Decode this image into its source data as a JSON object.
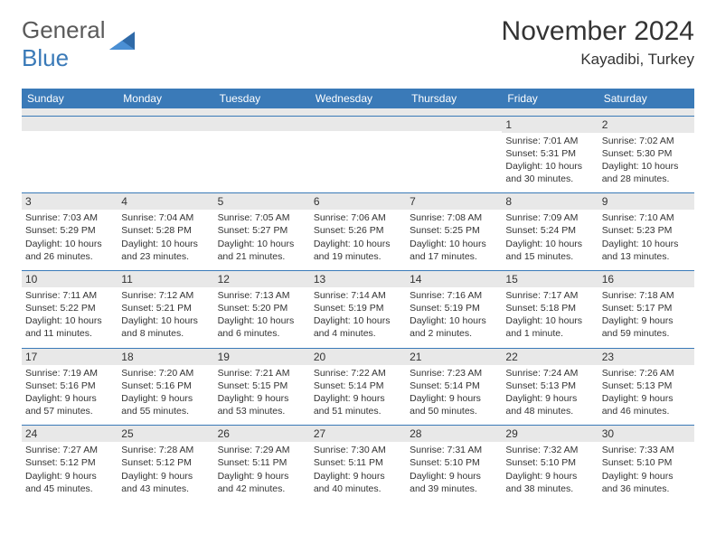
{
  "brand": {
    "part1": "General",
    "part2": "Blue",
    "color1": "#5a5a5a",
    "color2": "#3a7ab8"
  },
  "title": "November 2024",
  "location": "Kayadibi, Turkey",
  "header_bg": "#3a7ab8",
  "header_fg": "#ffffff",
  "band_bg": "#e8e8e8",
  "border_color": "#3a7ab8",
  "day_headers": [
    "Sunday",
    "Monday",
    "Tuesday",
    "Wednesday",
    "Thursday",
    "Friday",
    "Saturday"
  ],
  "weeks": [
    [
      null,
      null,
      null,
      null,
      null,
      {
        "n": "1",
        "sr": "7:01 AM",
        "ss": "5:31 PM",
        "dl": "10 hours and 30 minutes."
      },
      {
        "n": "2",
        "sr": "7:02 AM",
        "ss": "5:30 PM",
        "dl": "10 hours and 28 minutes."
      }
    ],
    [
      {
        "n": "3",
        "sr": "7:03 AM",
        "ss": "5:29 PM",
        "dl": "10 hours and 26 minutes."
      },
      {
        "n": "4",
        "sr": "7:04 AM",
        "ss": "5:28 PM",
        "dl": "10 hours and 23 minutes."
      },
      {
        "n": "5",
        "sr": "7:05 AM",
        "ss": "5:27 PM",
        "dl": "10 hours and 21 minutes."
      },
      {
        "n": "6",
        "sr": "7:06 AM",
        "ss": "5:26 PM",
        "dl": "10 hours and 19 minutes."
      },
      {
        "n": "7",
        "sr": "7:08 AM",
        "ss": "5:25 PM",
        "dl": "10 hours and 17 minutes."
      },
      {
        "n": "8",
        "sr": "7:09 AM",
        "ss": "5:24 PM",
        "dl": "10 hours and 15 minutes."
      },
      {
        "n": "9",
        "sr": "7:10 AM",
        "ss": "5:23 PM",
        "dl": "10 hours and 13 minutes."
      }
    ],
    [
      {
        "n": "10",
        "sr": "7:11 AM",
        "ss": "5:22 PM",
        "dl": "10 hours and 11 minutes."
      },
      {
        "n": "11",
        "sr": "7:12 AM",
        "ss": "5:21 PM",
        "dl": "10 hours and 8 minutes."
      },
      {
        "n": "12",
        "sr": "7:13 AM",
        "ss": "5:20 PM",
        "dl": "10 hours and 6 minutes."
      },
      {
        "n": "13",
        "sr": "7:14 AM",
        "ss": "5:19 PM",
        "dl": "10 hours and 4 minutes."
      },
      {
        "n": "14",
        "sr": "7:16 AM",
        "ss": "5:19 PM",
        "dl": "10 hours and 2 minutes."
      },
      {
        "n": "15",
        "sr": "7:17 AM",
        "ss": "5:18 PM",
        "dl": "10 hours and 1 minute."
      },
      {
        "n": "16",
        "sr": "7:18 AM",
        "ss": "5:17 PM",
        "dl": "9 hours and 59 minutes."
      }
    ],
    [
      {
        "n": "17",
        "sr": "7:19 AM",
        "ss": "5:16 PM",
        "dl": "9 hours and 57 minutes."
      },
      {
        "n": "18",
        "sr": "7:20 AM",
        "ss": "5:16 PM",
        "dl": "9 hours and 55 minutes."
      },
      {
        "n": "19",
        "sr": "7:21 AM",
        "ss": "5:15 PM",
        "dl": "9 hours and 53 minutes."
      },
      {
        "n": "20",
        "sr": "7:22 AM",
        "ss": "5:14 PM",
        "dl": "9 hours and 51 minutes."
      },
      {
        "n": "21",
        "sr": "7:23 AM",
        "ss": "5:14 PM",
        "dl": "9 hours and 50 minutes."
      },
      {
        "n": "22",
        "sr": "7:24 AM",
        "ss": "5:13 PM",
        "dl": "9 hours and 48 minutes."
      },
      {
        "n": "23",
        "sr": "7:26 AM",
        "ss": "5:13 PM",
        "dl": "9 hours and 46 minutes."
      }
    ],
    [
      {
        "n": "24",
        "sr": "7:27 AM",
        "ss": "5:12 PM",
        "dl": "9 hours and 45 minutes."
      },
      {
        "n": "25",
        "sr": "7:28 AM",
        "ss": "5:12 PM",
        "dl": "9 hours and 43 minutes."
      },
      {
        "n": "26",
        "sr": "7:29 AM",
        "ss": "5:11 PM",
        "dl": "9 hours and 42 minutes."
      },
      {
        "n": "27",
        "sr": "7:30 AM",
        "ss": "5:11 PM",
        "dl": "9 hours and 40 minutes."
      },
      {
        "n": "28",
        "sr": "7:31 AM",
        "ss": "5:10 PM",
        "dl": "9 hours and 39 minutes."
      },
      {
        "n": "29",
        "sr": "7:32 AM",
        "ss": "5:10 PM",
        "dl": "9 hours and 38 minutes."
      },
      {
        "n": "30",
        "sr": "7:33 AM",
        "ss": "5:10 PM",
        "dl": "9 hours and 36 minutes."
      }
    ]
  ],
  "labels": {
    "sunrise": "Sunrise:",
    "sunset": "Sunset:",
    "daylight": "Daylight:"
  }
}
